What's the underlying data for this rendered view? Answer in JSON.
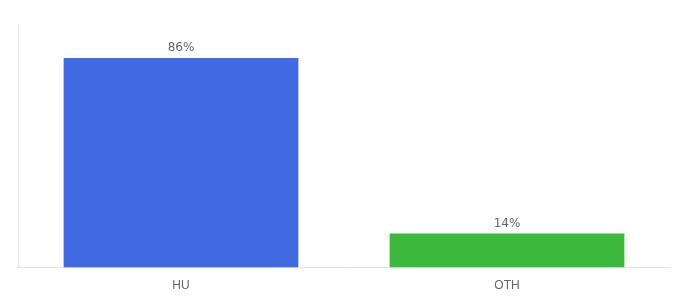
{
  "chart_data": {
    "type": "bar",
    "categories": [
      "HU",
      "OTH"
    ],
    "values": [
      86,
      14
    ],
    "value_labels": [
      "86%",
      "14%"
    ],
    "colors": [
      "#4169e1",
      "#3cb83c"
    ],
    "ylim": [
      0,
      100
    ],
    "grid": false,
    "data_labels": true,
    "tick_labels": "x"
  }
}
